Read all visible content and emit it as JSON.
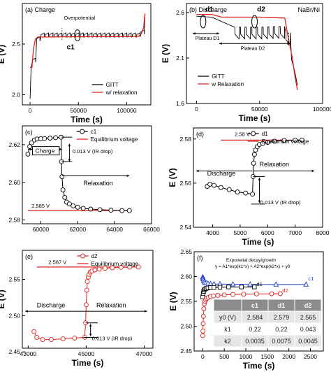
{
  "colors": {
    "gitt": "#000000",
    "relaxation": "#e0201c",
    "equilibrium": "#e0201c",
    "marker_fill": "#ffffff",
    "c1": "#000000",
    "d1": "#000000",
    "d2": "#e0201c",
    "fit_c1": "#1f3fd6",
    "table_header_bg": "#8c8c8c",
    "table_row_a": "#e6e6e6",
    "table_row_b": "#ffffff"
  },
  "chart_data": [
    {
      "id": "a",
      "type": "line",
      "title": "(a) Charge",
      "xlabel": "Time (s)",
      "ylabel": "E (V)",
      "xlim": [
        -8000,
        125000
      ],
      "ylim": [
        1.9,
        2.9
      ],
      "xticks": [
        0,
        50000,
        100000
      ],
      "xtick_labels": [
        "0",
        "50000",
        "100000"
      ],
      "yticks": [
        2.0,
        2.5
      ],
      "ytick_labels": [
        "2.0",
        "2.5"
      ],
      "legend_position": "lower-right",
      "annotations": [
        "Overpotential",
        "c1"
      ],
      "series": [
        {
          "name": "GITT",
          "style": "sawtooth",
          "x": [
            0,
            400,
            1200,
            2000,
            3500,
            5500,
            8000,
            12000,
            112000,
            115000,
            117500,
            119000
          ],
          "base": [
            1.96,
            2.22,
            2.28,
            2.3,
            2.42,
            2.5,
            2.56,
            2.57,
            2.57,
            2.6,
            2.66,
            2.8
          ],
          "amplitude": 0.04,
          "period": 4500
        },
        {
          "name": "w/ relaxation",
          "x": [
            0,
            400,
            2000,
            3500,
            5500,
            8000,
            12000,
            112000,
            115000,
            117500,
            119000
          ],
          "y": [
            2.27,
            2.27,
            2.27,
            2.45,
            2.55,
            2.57,
            2.57,
            2.575,
            2.6,
            2.66,
            2.8
          ]
        }
      ]
    },
    {
      "id": "b",
      "type": "line",
      "title": "(b) Discharge",
      "title_right": "NaBr/Ni",
      "xlabel": "Time (s)",
      "ylabel": "E (V)",
      "xlim": [
        -8000,
        100000
      ],
      "ylim": [
        1.6,
        2.7
      ],
      "xticks": [
        0,
        50000,
        100000
      ],
      "xtick_labels": [
        "0",
        "50000",
        "100000"
      ],
      "yticks": [
        1.6,
        2.1,
        2.6
      ],
      "ytick_labels": [
        "1.6",
        "2.1",
        "2.6"
      ],
      "legend_position": "lower-left",
      "annotations": [
        "d1",
        "d2",
        "Plateau D1",
        "Plateau D2"
      ],
      "series": [
        {
          "name": "GITT",
          "style": "sawtooth-down",
          "x": [
            0,
            12000,
            30000,
            50000,
            65000,
            70000,
            72000,
            75000,
            78000,
            80000
          ],
          "base": [
            2.56,
            2.55,
            2.44,
            2.44,
            2.45,
            2.44,
            2.3,
            2.1,
            1.95,
            1.8
          ],
          "amplitude": 0.13,
          "period": 4500
        },
        {
          "name": "w Relaxation",
          "x": [
            0,
            12000,
            20000,
            50000,
            70000,
            73000,
            76000,
            78000,
            80000
          ],
          "y": [
            2.58,
            2.58,
            2.55,
            2.55,
            2.54,
            2.3,
            2.1,
            1.9,
            1.75
          ]
        }
      ]
    },
    {
      "id": "c",
      "type": "line",
      "title": "(c)",
      "xlabel": "",
      "ylabel": "",
      "xlim": [
        59000,
        66000
      ],
      "ylim": [
        2.578,
        2.63
      ],
      "xticks": [
        60000,
        62000,
        64000,
        66000
      ],
      "xtick_labels": [
        "60000",
        "62000",
        "64000",
        "66000"
      ],
      "yticks": [
        2.58,
        2.6,
        2.62
      ],
      "ytick_labels": [
        "2.58",
        "2.60",
        "2.62"
      ],
      "legend_position": "top-right",
      "annotations": [
        "Charge",
        "Relaxation",
        "0.013 V (IR drop)",
        "2.585 V"
      ],
      "series": [
        {
          "name": "c1",
          "marker": "circle",
          "x": [
            59300,
            59400,
            59500,
            59650,
            59800,
            60000,
            60200,
            60500,
            60800,
            61100,
            61120,
            61150,
            61200,
            61300,
            61400,
            61550,
            61750,
            62000,
            62300,
            62700,
            63200,
            63800,
            64400,
            64800
          ],
          "y": [
            2.615,
            2.619,
            2.621,
            2.6225,
            2.623,
            2.6232,
            2.6233,
            2.6235,
            2.6237,
            2.624,
            2.611,
            2.603,
            2.596,
            2.592,
            2.5895,
            2.5885,
            2.5875,
            2.5868,
            2.5862,
            2.5858,
            2.5855,
            2.5852,
            2.585,
            2.585
          ]
        },
        {
          "name": "Equilibrium voltage",
          "x": [
            59300,
            64800
          ],
          "y": [
            2.585,
            2.585
          ]
        }
      ]
    },
    {
      "id": "d",
      "type": "line",
      "title": "(d)",
      "xlabel": "Time (s)",
      "ylabel": "E (V)",
      "xlim": [
        3300,
        8000
      ],
      "ylim": [
        2.54,
        2.585
      ],
      "xticks": [
        4000,
        5000,
        6000,
        7000,
        8000
      ],
      "xtick_labels": [
        "4000",
        "5000",
        "6000",
        "7000",
        "8000"
      ],
      "yticks": [
        2.54,
        2.56,
        2.58
      ],
      "ytick_labels": [
        "2.54",
        "2.56",
        "2.58"
      ],
      "legend_position": "top-right",
      "annotations": [
        "2.58 V",
        "Discharge",
        "Relaxation",
        "0.013 V (IR drop)"
      ],
      "series": [
        {
          "name": "d1",
          "marker": "circle",
          "x": [
            3800,
            3900,
            4050,
            4300,
            4600,
            4900,
            5200,
            5450,
            5470,
            5490,
            5520,
            5560,
            5620,
            5700,
            5820,
            6000,
            6250,
            6600,
            7000,
            7250
          ],
          "y": [
            2.5585,
            2.5595,
            2.559,
            2.558,
            2.557,
            2.556,
            2.5555,
            2.555,
            2.563,
            2.569,
            2.573,
            2.575,
            2.5765,
            2.5775,
            2.578,
            2.5785,
            2.579,
            2.5793,
            2.5795,
            2.5795
          ]
        },
        {
          "name": "Equilibrium voltage",
          "x": [
            4300,
            7250
          ],
          "y": [
            2.5795,
            2.5795
          ]
        }
      ]
    },
    {
      "id": "e",
      "type": "line",
      "title": "(e)",
      "xlabel": "Time (s)",
      "ylabel": "E (V)",
      "xlim": [
        42800,
        47300
      ],
      "ylim": [
        2.455,
        2.59
      ],
      "xticks": [
        43000,
        45000,
        47000
      ],
      "xtick_labels": [
        "43000",
        "45000",
        "47000"
      ],
      "yticks": [
        2.45,
        2.5,
        2.55
      ],
      "ytick_labels": [
        "2.45",
        "2.50",
        "2.55"
      ],
      "legend_position": "top-right",
      "annotations": [
        "2.567 V",
        "Discharge",
        "Relaxation",
        "0.013 V (IR drop)"
      ],
      "series": [
        {
          "name": "d2",
          "marker": "circle",
          "x": [
            43200,
            43300,
            43500,
            43800,
            44200,
            44600,
            44950,
            44980,
            45000,
            45020,
            45040,
            45070,
            45100,
            45140,
            45200,
            45300,
            45450,
            45650,
            45900,
            46200,
            46500,
            46800
          ],
          "y": [
            2.478,
            2.47,
            2.467,
            2.467,
            2.468,
            2.469,
            2.47,
            2.49,
            2.515,
            2.535,
            2.547,
            2.553,
            2.557,
            2.56,
            2.5615,
            2.563,
            2.564,
            2.5652,
            2.566,
            2.5665,
            2.5668,
            2.567
          ]
        },
        {
          "name": "Equilibrium voltage",
          "x": [
            43300,
            46800
          ],
          "y": [
            2.567,
            2.567
          ]
        }
      ]
    },
    {
      "id": "f",
      "type": "scatter",
      "title": "(f)",
      "xlabel": "Time (s)",
      "ylabel": "E (V)",
      "xlim": [
        -200,
        2800
      ],
      "ylim": [
        2.45,
        2.65
      ],
      "xticks": [
        0,
        500,
        1000,
        1500,
        2000,
        2500
      ],
      "xtick_labels": [
        "0",
        "500",
        "1000",
        "1500",
        "2000",
        "2500"
      ],
      "yticks": [
        2.45,
        2.5,
        2.55,
        2.6,
        2.65
      ],
      "ytick_labels": [
        "2.45",
        "2.50",
        "2.55",
        "2.60",
        "2.65"
      ],
      "annotations": [
        "Exponetial decay/growth",
        "y = A1*exp(k1*x) + A2*exp(k2*x) + y0"
      ],
      "series": [
        {
          "name": "c1",
          "marker": "triangle",
          "x": [
            0,
            5,
            10,
            20,
            35,
            50,
            80,
            120,
            180,
            260,
            400,
            700,
            1100,
            1700,
            2400
          ],
          "y": [
            2.599,
            2.597,
            2.595,
            2.592,
            2.59,
            2.588,
            2.587,
            2.586,
            2.5855,
            2.585,
            2.5848,
            2.5845,
            2.5842,
            2.584,
            2.584
          ]
        },
        {
          "name": "d1",
          "marker": "square",
          "x": [
            0,
            10,
            20,
            35,
            55,
            80,
            120,
            180,
            260,
            400,
            600,
            900,
            1200
          ],
          "y": [
            2.559,
            2.566,
            2.57,
            2.573,
            2.575,
            2.576,
            2.577,
            2.5778,
            2.578,
            2.5785,
            2.579,
            2.579,
            2.579
          ]
        },
        {
          "name": "d2",
          "marker": "circle",
          "x": [
            0,
            5,
            10,
            15,
            25,
            35,
            50,
            70,
            95,
            130,
            180,
            250,
            350,
            500,
            700,
            950,
            1250,
            1600,
            1800
          ],
          "y": [
            2.481,
            2.49,
            2.505,
            2.52,
            2.535,
            2.545,
            2.55,
            2.553,
            2.556,
            2.558,
            2.56,
            2.561,
            2.562,
            2.563,
            2.564,
            2.5645,
            2.565,
            2.5652,
            2.5655
          ]
        }
      ],
      "table": {
        "headers": [
          "",
          "c1",
          "d1",
          "d2"
        ],
        "rows": [
          [
            "y0 (V)",
            "2.584",
            "2.579",
            "2.565"
          ],
          [
            "k1",
            "0.22",
            "0.22",
            "0.043"
          ],
          [
            "k2",
            "0.0035",
            "0.0075",
            "0.0045"
          ]
        ]
      }
    }
  ]
}
